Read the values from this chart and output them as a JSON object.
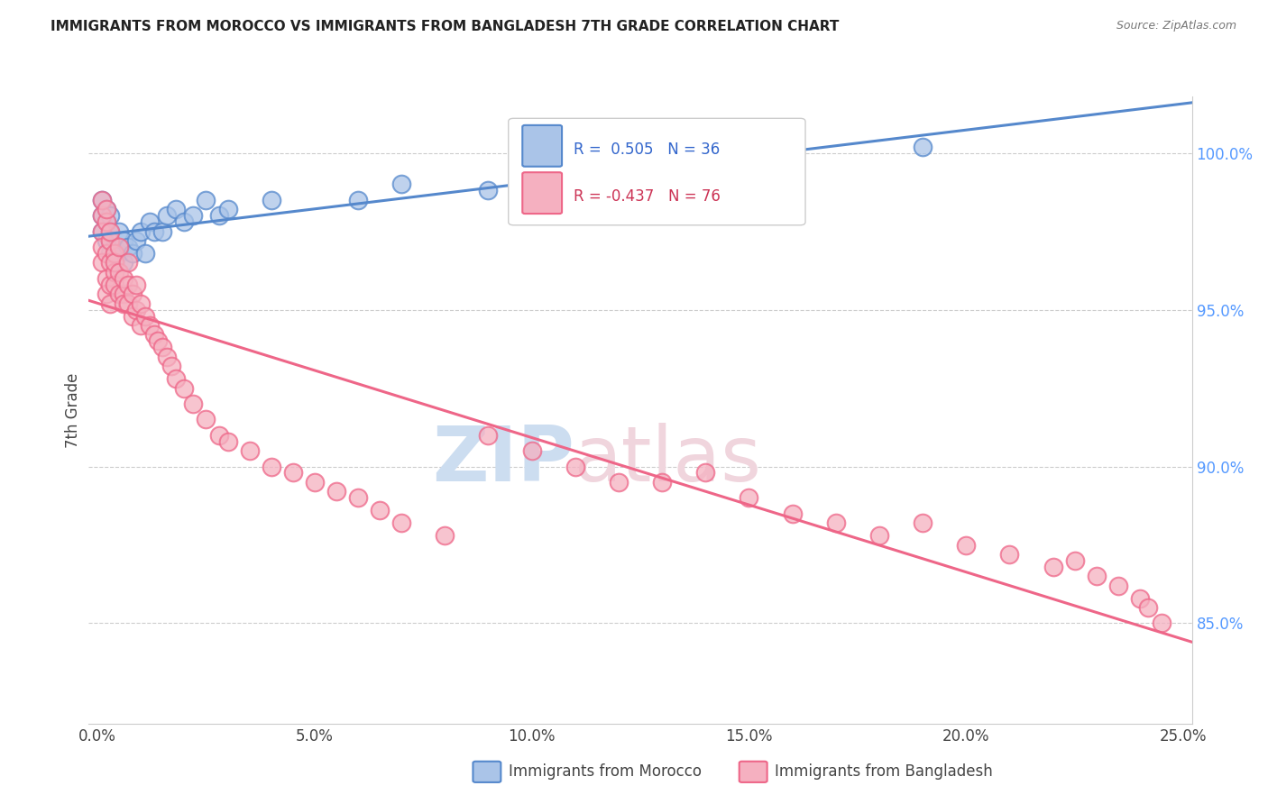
{
  "title": "IMMIGRANTS FROM MOROCCO VS IMMIGRANTS FROM BANGLADESH 7TH GRADE CORRELATION CHART",
  "source": "Source: ZipAtlas.com",
  "ylabel": "7th Grade",
  "y_tick_labels": [
    "85.0%",
    "90.0%",
    "95.0%",
    "100.0%"
  ],
  "y_tick_values": [
    0.85,
    0.9,
    0.95,
    1.0
  ],
  "x_tick_labels": [
    "0.0%",
    "5.0%",
    "10.0%",
    "15.0%",
    "20.0%",
    "25.0%"
  ],
  "x_tick_values": [
    0.0,
    0.05,
    0.1,
    0.15,
    0.2,
    0.25
  ],
  "xlim": [
    -0.002,
    0.252
  ],
  "ylim": [
    0.818,
    1.018
  ],
  "morocco_color": "#5588CC",
  "morocco_color_fill": "#aac4e8",
  "bangladesh_color": "#EE6688",
  "bangladesh_color_fill": "#f5b0c0",
  "morocco_R": 0.505,
  "morocco_N": 36,
  "bangladesh_R": -0.437,
  "bangladesh_N": 76,
  "legend_label_morocco": "Immigrants from Morocco",
  "legend_label_bangladesh": "Immigrants from Bangladesh",
  "background_color": "#ffffff",
  "grid_color": "#cccccc",
  "morocco_x": [
    0.001,
    0.001,
    0.001,
    0.002,
    0.002,
    0.002,
    0.003,
    0.003,
    0.003,
    0.003,
    0.004,
    0.004,
    0.005,
    0.005,
    0.006,
    0.006,
    0.007,
    0.008,
    0.009,
    0.01,
    0.011,
    0.012,
    0.013,
    0.015,
    0.016,
    0.018,
    0.02,
    0.022,
    0.025,
    0.028,
    0.03,
    0.04,
    0.06,
    0.07,
    0.09,
    0.19
  ],
  "morocco_y": [
    0.98,
    0.975,
    0.985,
    0.972,
    0.978,
    0.982,
    0.968,
    0.975,
    0.98,
    0.972,
    0.965,
    0.97,
    0.968,
    0.975,
    0.965,
    0.972,
    0.97,
    0.968,
    0.972,
    0.975,
    0.968,
    0.978,
    0.975,
    0.975,
    0.98,
    0.982,
    0.978,
    0.98,
    0.985,
    0.98,
    0.982,
    0.985,
    0.985,
    0.99,
    0.988,
    1.002
  ],
  "bangladesh_x": [
    0.001,
    0.001,
    0.001,
    0.001,
    0.001,
    0.002,
    0.002,
    0.002,
    0.002,
    0.002,
    0.003,
    0.003,
    0.003,
    0.003,
    0.003,
    0.004,
    0.004,
    0.004,
    0.004,
    0.005,
    0.005,
    0.005,
    0.006,
    0.006,
    0.006,
    0.007,
    0.007,
    0.007,
    0.008,
    0.008,
    0.009,
    0.009,
    0.01,
    0.01,
    0.011,
    0.012,
    0.013,
    0.014,
    0.015,
    0.016,
    0.017,
    0.018,
    0.02,
    0.022,
    0.025,
    0.028,
    0.03,
    0.035,
    0.04,
    0.045,
    0.05,
    0.055,
    0.06,
    0.065,
    0.07,
    0.08,
    0.09,
    0.1,
    0.11,
    0.12,
    0.13,
    0.14,
    0.15,
    0.16,
    0.17,
    0.18,
    0.19,
    0.2,
    0.21,
    0.22,
    0.225,
    0.23,
    0.235,
    0.24,
    0.242,
    0.245
  ],
  "bangladesh_y": [
    0.98,
    0.975,
    0.985,
    0.97,
    0.965,
    0.978,
    0.982,
    0.968,
    0.96,
    0.955,
    0.972,
    0.965,
    0.975,
    0.958,
    0.952,
    0.968,
    0.962,
    0.958,
    0.965,
    0.962,
    0.955,
    0.97,
    0.955,
    0.96,
    0.952,
    0.958,
    0.952,
    0.965,
    0.955,
    0.948,
    0.95,
    0.958,
    0.945,
    0.952,
    0.948,
    0.945,
    0.942,
    0.94,
    0.938,
    0.935,
    0.932,
    0.928,
    0.925,
    0.92,
    0.915,
    0.91,
    0.908,
    0.905,
    0.9,
    0.898,
    0.895,
    0.892,
    0.89,
    0.886,
    0.882,
    0.878,
    0.91,
    0.905,
    0.9,
    0.895,
    0.895,
    0.898,
    0.89,
    0.885,
    0.882,
    0.878,
    0.882,
    0.875,
    0.872,
    0.868,
    0.87,
    0.865,
    0.862,
    0.858,
    0.855,
    0.85
  ]
}
